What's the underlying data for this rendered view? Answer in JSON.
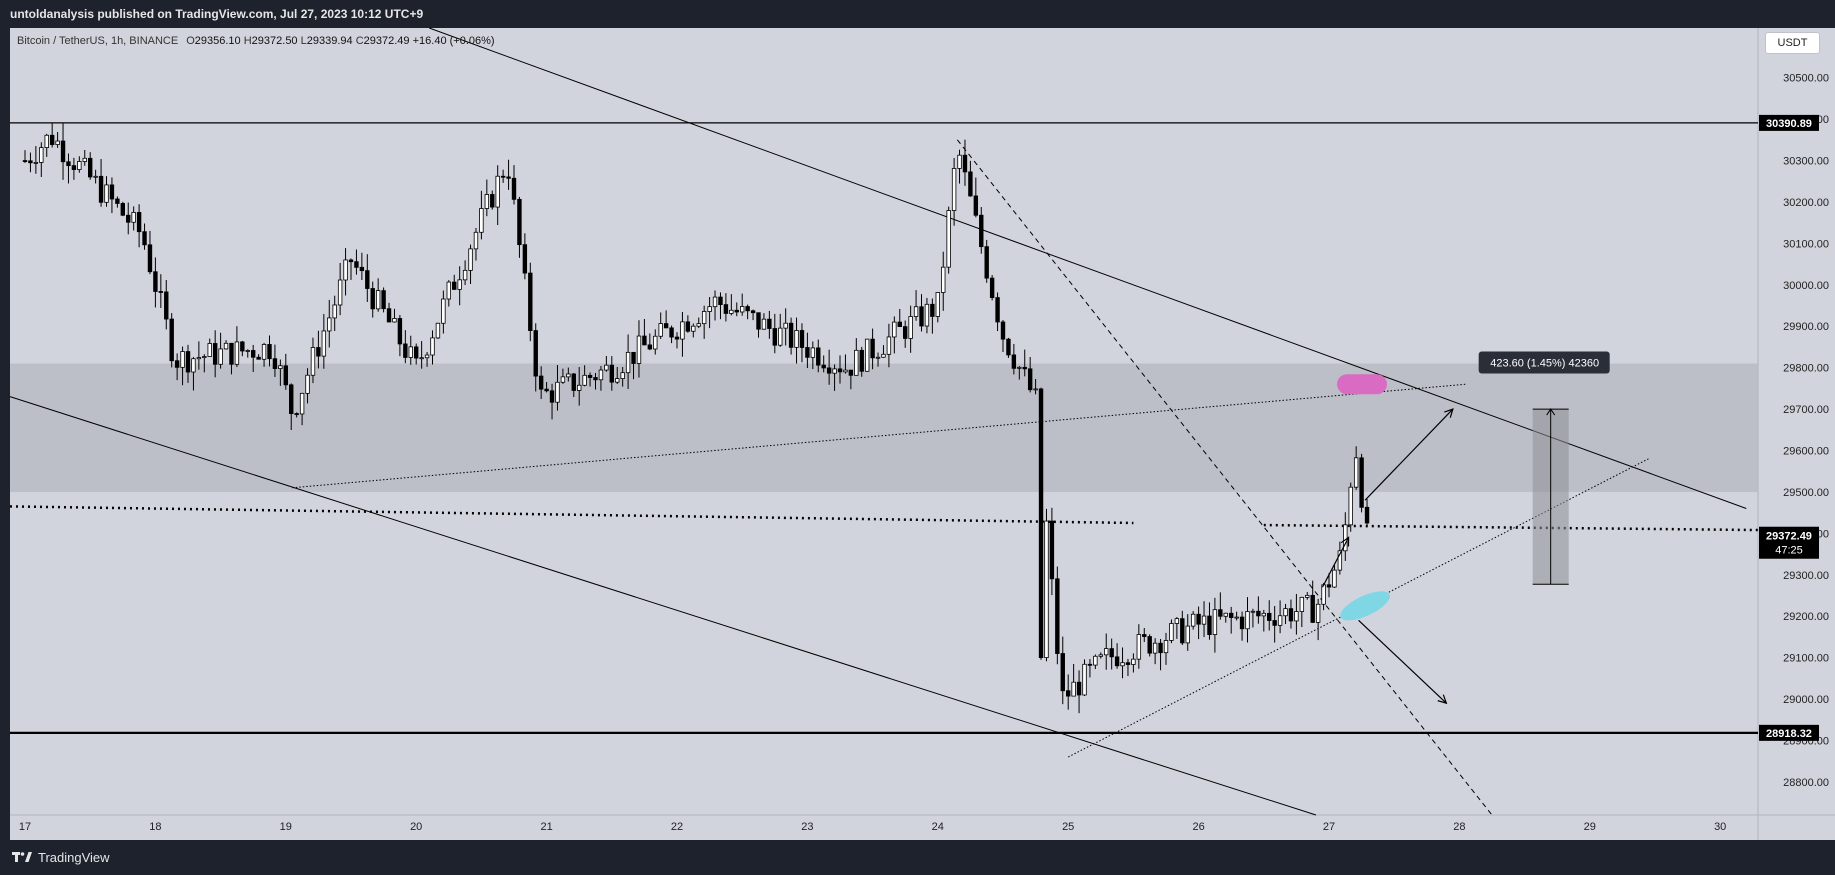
{
  "header": {
    "published_text": "untoldanalysis published on TradingView.com, Jul 27, 2023 10:12 UTC+9"
  },
  "legend": {
    "symbol": "Bitcoin / TetherUS, 1h, BINANCE",
    "open_label": "O",
    "open": "29356.10",
    "high_label": "H",
    "high": "29372.50",
    "low_label": "L",
    "low": "29339.94",
    "close_label": "C",
    "close": "29372.49",
    "change": "+16.40 (+0.06%)"
  },
  "currency_button": "USDT",
  "footer": {
    "brand": "TradingView"
  },
  "colors": {
    "chart_bg": "#d1d4dc",
    "frame_bg": "#1e222d",
    "zone": "#b9bbc3",
    "candle": "#000000",
    "pink_marker": "#d96bc2",
    "cyan_marker": "#7fd6e4",
    "measure_box": "#8e9096"
  },
  "chart_data": {
    "type": "candlestick",
    "symbol": "Bitcoin / TetherUS",
    "interval": "1h",
    "x_ticks": [
      "17",
      "18",
      "19",
      "20",
      "21",
      "22",
      "23",
      "24",
      "25",
      "26",
      "27",
      "28",
      "29",
      "30"
    ],
    "y_ticks": [
      30500,
      30400,
      30300,
      30200,
      30100,
      30000,
      29900,
      29800,
      29700,
      29600,
      29500,
      29400,
      29300,
      29200,
      29100,
      29000,
      28900,
      28800
    ],
    "ylim": [
      28720,
      30620
    ],
    "price_labels": [
      {
        "value": 30390.89,
        "text": "30390.89"
      },
      {
        "value": 28918.32,
        "text": "28918.32"
      }
    ],
    "current_price": {
      "value": 29372.49,
      "text": "29372.49",
      "countdown": "47:25"
    },
    "resistance_zone": [
      29500,
      29810
    ],
    "measure_tool": {
      "text": "423.60 (1.45%) 42360",
      "from": 29277,
      "to": 29700,
      "day": 28.7
    },
    "candles_ohlc_anchor_days": [
      {
        "day": 17.0,
        "price": 30300
      },
      {
        "day": 17.2,
        "price": 30360
      },
      {
        "day": 17.9,
        "price": 30120
      },
      {
        "day": 18.15,
        "price": 29820
      },
      {
        "day": 18.9,
        "price": 29850
      },
      {
        "day": 19.05,
        "price": 29690
      },
      {
        "day": 19.5,
        "price": 30060
      },
      {
        "day": 20.0,
        "price": 29800
      },
      {
        "day": 20.7,
        "price": 30300
      },
      {
        "day": 20.95,
        "price": 29730
      },
      {
        "day": 21.5,
        "price": 29800
      },
      {
        "day": 22.3,
        "price": 29960
      },
      {
        "day": 23.3,
        "price": 29800
      },
      {
        "day": 24.0,
        "price": 29950
      },
      {
        "day": 24.15,
        "price": 30330
      },
      {
        "day": 24.5,
        "price": 29880
      },
      {
        "day": 24.75,
        "price": 29720
      },
      {
        "day": 24.95,
        "price": 29000
      },
      {
        "day": 25.3,
        "price": 29100
      },
      {
        "day": 26.0,
        "price": 29180
      },
      {
        "day": 26.9,
        "price": 29220
      },
      {
        "day": 27.1,
        "price": 29350
      },
      {
        "day": 27.2,
        "price": 29620
      },
      {
        "day": 27.3,
        "price": 29372
      }
    ]
  }
}
